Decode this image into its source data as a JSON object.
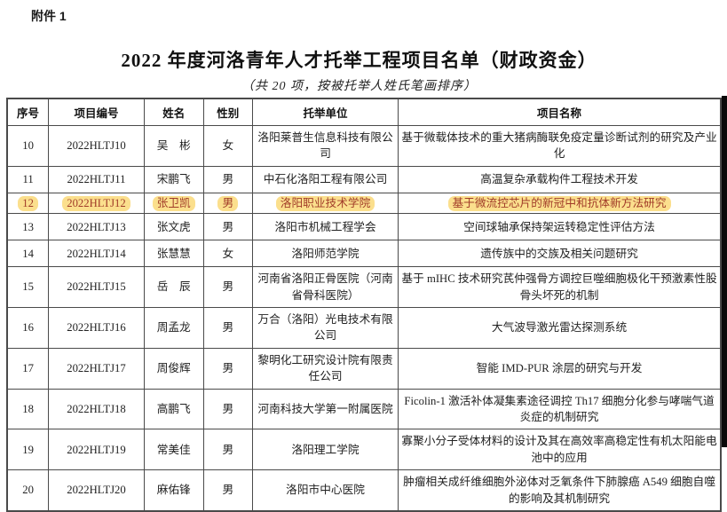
{
  "page": {
    "attachment_label": "附件 1",
    "title": "2022 年度河洛青年人才托举工程项目名单（财政资金）",
    "subtitle": "（共 20 项，按被托举人姓氏笔画排序）"
  },
  "colors": {
    "highlight_background": "#fbdf8d",
    "highlight_text": "#a13c29",
    "border": "#4a4a4a"
  },
  "table": {
    "columns": [
      "序号",
      "项目编号",
      "姓名",
      "性别",
      "托举单位",
      "项目名称"
    ],
    "rows": [
      {
        "no": "10",
        "code": "2022HLTJ10",
        "name": "吴　彬",
        "gender": "女",
        "unit": "洛阳莱普生信息科技有限公司",
        "project": "基于微载体技术的重大猪病酶联免疫定量诊断试剂的研究及产业化",
        "highlighted": false
      },
      {
        "no": "11",
        "code": "2022HLTJ11",
        "name": "宋鹏飞",
        "gender": "男",
        "unit": "中石化洛阳工程有限公司",
        "project": "高温复杂承载构件工程技术开发",
        "highlighted": false
      },
      {
        "no": "12",
        "code": "2022HLTJ12",
        "name": "张卫凯",
        "gender": "男",
        "unit": "洛阳职业技术学院",
        "project": "基于微流控芯片的新冠中和抗体新方法研究",
        "highlighted": true
      },
      {
        "no": "13",
        "code": "2022HLTJ13",
        "name": "张文虎",
        "gender": "男",
        "unit": "洛阳市机械工程学会",
        "project": "空间球轴承保持架运转稳定性评估方法",
        "highlighted": false
      },
      {
        "no": "14",
        "code": "2022HLTJ14",
        "name": "张慧慧",
        "gender": "女",
        "unit": "洛阳师范学院",
        "project": "遗传族中的交族及相关问题研究",
        "highlighted": false
      },
      {
        "no": "15",
        "code": "2022HLTJ15",
        "name": "岳　辰",
        "gender": "男",
        "unit": "河南省洛阳正骨医院（河南省骨科医院）",
        "project": "基于 mIHC 技术研究芪仲强骨方调控巨噬细胞极化干预激素性股骨头坏死的机制",
        "highlighted": false
      },
      {
        "no": "16",
        "code": "2022HLTJ16",
        "name": "周孟龙",
        "gender": "男",
        "unit": "万合（洛阳）光电技术有限公司",
        "project": "大气波导激光雷达探测系统",
        "highlighted": false
      },
      {
        "no": "17",
        "code": "2022HLTJ17",
        "name": "周俊辉",
        "gender": "男",
        "unit": "黎明化工研究设计院有限责任公司",
        "project": "智能 IMD-PUR 涂层的研究与开发",
        "highlighted": false
      },
      {
        "no": "18",
        "code": "2022HLTJ18",
        "name": "高鹏飞",
        "gender": "男",
        "unit": "河南科技大学第一附属医院",
        "project": "Ficolin-1 激活补体凝集素途径调控 Th17 细胞分化参与哮喘气道炎症的机制研究",
        "highlighted": false
      },
      {
        "no": "19",
        "code": "2022HLTJ19",
        "name": "常美佳",
        "gender": "男",
        "unit": "洛阳理工学院",
        "project": "寡聚小分子受体材料的设计及其在高效率高稳定性有机太阳能电池中的应用",
        "highlighted": false
      },
      {
        "no": "20",
        "code": "2022HLTJ20",
        "name": "麻佑锋",
        "gender": "男",
        "unit": "洛阳市中心医院",
        "project": "肿瘤相关成纤维细胞外泌体对乏氧条件下肺腺癌 A549 细胞自噬的影响及其机制研究",
        "highlighted": false
      }
    ]
  }
}
